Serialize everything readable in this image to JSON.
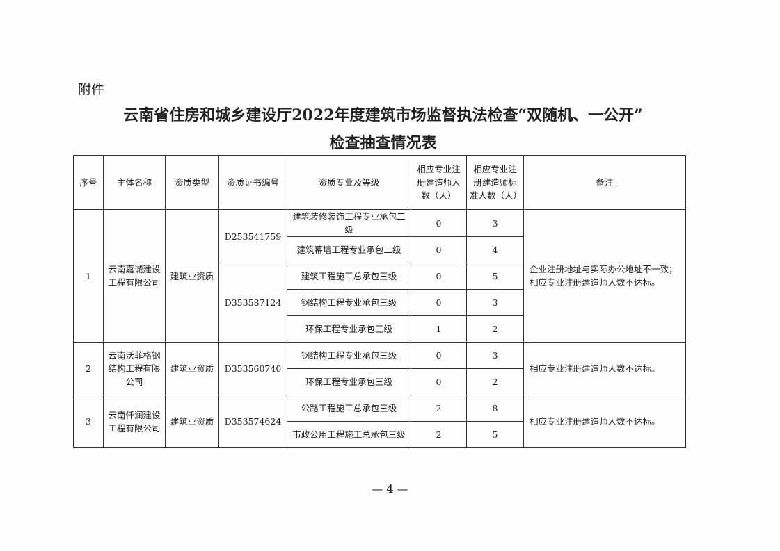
{
  "attachment_label": "附件",
  "title_line1": "云南省住房和城乡建设厅2022年度建筑市场监督执法检查“双随机、一公开”",
  "title_line2": "检查抽查情况表",
  "headers": [
    "序号",
    "主体名称",
    "资质类型",
    "资质证书编号",
    "资质专业及等级",
    "相应专业注册建造师人数（人）",
    "相应专业注册建造师标准人数（人）",
    "备注"
  ],
  "rows": [
    {
      "no": "1",
      "name": "云南嘉诚建设工程有限公司",
      "type": "建筑业资质",
      "remark": "企业注册地址与实际办公地址不一致；相应专业注册建造师人数不达标。",
      "certs": [
        {
          "code": "D253541759",
          "items": [
            {
              "spec": "建筑装修装饰工程专业承包二级",
              "actual": "0",
              "standard": "3"
            },
            {
              "spec": "建筑幕墙工程专业承包二级",
              "actual": "0",
              "standard": "4"
            }
          ]
        },
        {
          "code": "D353587124",
          "items": [
            {
              "spec": "建筑工程施工总承包三级",
              "actual": "0",
              "standard": "5"
            },
            {
              "spec": "钢结构工程专业承包三级",
              "actual": "0",
              "standard": "3"
            },
            {
              "spec": "环保工程专业承包三级",
              "actual": "1",
              "standard": "2"
            }
          ]
        }
      ]
    },
    {
      "no": "2",
      "name": "云南沃菲格钢结构工程有限公司",
      "type": "建筑业资质",
      "remark": "相应专业注册建造师人数不达标。",
      "certs": [
        {
          "code": "D353560740",
          "items": [
            {
              "spec": "钢结构工程专业承包三级",
              "actual": "0",
              "standard": "3"
            },
            {
              "spec": "环保工程专业承包三级",
              "actual": "0",
              "standard": "2"
            }
          ]
        }
      ]
    },
    {
      "no": "3",
      "name": "云南仟润建设工程有限公司",
      "type": "建筑业资质",
      "remark": "相应专业注册建造师人数不达标。",
      "certs": [
        {
          "code": "D353574624",
          "items": [
            {
              "spec": "公路工程施工总承包三级",
              "actual": "2",
              "standard": "8"
            },
            {
              "spec": "市政公用工程施工总承包三级",
              "actual": "2",
              "standard": "5"
            }
          ]
        }
      ]
    }
  ],
  "page_number": "— 4 —"
}
